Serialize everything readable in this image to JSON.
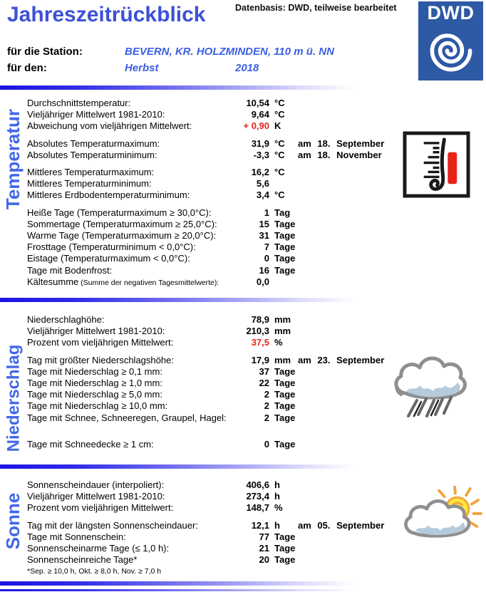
{
  "header": {
    "title": "Jahreszeitrückblick",
    "data_basis": "Datenbasis: DWD, teilweise bearbeitet",
    "logo_text": "DWD"
  },
  "station": {
    "station_label": "für die Station:",
    "station_value": "BEVERN, KR. HOLZMINDEN, 110 m ü. NN",
    "period_label": "für den:",
    "season": "Herbst",
    "year": "2018"
  },
  "colors": {
    "title_blue": "#3d50d6",
    "section_label_blue": "#4167e8",
    "station_blue": "#3b5fe0",
    "value_red": "#e8231a",
    "logo_blue": "#2d59a5"
  },
  "sections": [
    {
      "id": "temperatur",
      "label": "Temperatur",
      "icon": "thermometer-icon",
      "groups": [
        {
          "rows": [
            {
              "label": "Durchschnittstemperatur:",
              "value": "10,54",
              "unit": "°C"
            },
            {
              "label": "Vieljähriger Mittelwert 1981-2010:",
              "value": "9,64",
              "unit": "°C"
            },
            {
              "label": "Abweichung vom vieljährigen Mittelwert:",
              "value": "+ 0,90",
              "unit": "K",
              "red": true
            }
          ]
        },
        {
          "rows": [
            {
              "label": "Absolutes Temperaturmaximum:",
              "value": "31,9",
              "unit": "°C",
              "extra": "am 18. September"
            },
            {
              "label": "Absolutes Temperaturminimum:",
              "value": "-3,3",
              "unit": "°C",
              "extra": "am 18. November"
            }
          ]
        },
        {
          "rows": [
            {
              "label": "Mittleres Temperaturmaximum:",
              "value": "16,2",
              "unit": "°C"
            },
            {
              "label": "Mittleres Temperaturminimum:",
              "value": "5,6",
              "unit": ""
            },
            {
              "label": "Mittleres Erdbodentemperaturminimum:",
              "value": "3,4",
              "unit": "°C"
            }
          ]
        },
        {
          "rows": [
            {
              "label": "Heiße Tage (Temperaturmaximum ≥ 30,0°C):",
              "value": "1",
              "unit": "Tag"
            },
            {
              "label": "Sommertage (Temperaturmaximum ≥ 25,0°C):",
              "value": "15",
              "unit": "Tage"
            },
            {
              "label": "Warme Tage (Temperaturmaximum ≥ 20,0°C):",
              "value": "31",
              "unit": "Tage"
            },
            {
              "label": "Frosttage (Temperaturminimum < 0,0°C):",
              "value": "7",
              "unit": "Tage"
            },
            {
              "label": "Eistage (Temperaturmaximum < 0,0°C):",
              "value": "0",
              "unit": "Tage"
            },
            {
              "label": "Tage mit Bodenfrost:",
              "value": "16",
              "unit": "Tage"
            },
            {
              "label": "Kältesumme",
              "label_small": "(Summe der negativen Tagesmittelwerte):",
              "value": "0,0",
              "unit": ""
            }
          ]
        }
      ]
    },
    {
      "id": "niederschlag",
      "label": "Niederschlag",
      "icon": "rain-cloud-icon",
      "groups": [
        {
          "rows": [
            {
              "label": "Niederschlaghöhe:",
              "value": "78,9",
              "unit": "mm"
            },
            {
              "label": "Vieljähriger Mittelwert 1981-2010:",
              "value": "210,3",
              "unit": "mm"
            },
            {
              "label": "Prozent vom vieljährigen Mittelwert:",
              "value": "37,5",
              "unit": "%",
              "red": true
            }
          ]
        },
        {
          "rows": [
            {
              "label": "Tag mit größter Niederschlagshöhe:",
              "value": "17,9",
              "unit": "mm",
              "extra": "am 23. September"
            },
            {
              "label": "Tage mit Niederschlag ≥ 0,1 mm:",
              "value": "37",
              "unit": "Tage"
            },
            {
              "label": "Tage mit Niederschlag ≥ 1,0 mm:",
              "value": "22",
              "unit": "Tage"
            },
            {
              "label": "Tage mit Niederschlag ≥ 5,0 mm:",
              "value": "2",
              "unit": "Tage"
            },
            {
              "label": "Tage mit Niederschlag ≥ 10,0 mm:",
              "value": "2",
              "unit": "Tage"
            },
            {
              "label": "Tage mit Schnee, Schneeregen, Graupel, Hagel:",
              "value": "2",
              "unit": "Tage"
            }
          ]
        },
        {
          "gap": 21,
          "rows": [
            {
              "label": "Tage mit Schneedecke ≥ 1 cm:",
              "value": "0",
              "unit": "Tage"
            }
          ]
        }
      ]
    },
    {
      "id": "sonne",
      "label": "Sonne",
      "icon": "sun-cloud-icon",
      "footnote": "*Sep. ≥ 10,0 h, Okt. ≥ 8,0 h, Nov. ≥ 7,0 h",
      "groups": [
        {
          "rows": [
            {
              "label": "Sonnenscheindauer (interpoliert):",
              "value": "406,6",
              "unit": "h"
            },
            {
              "label": "Vieljähriger Mittelwert 1981-2010:",
              "value": "273,4",
              "unit": "h"
            },
            {
              "label": "Prozent vom vieljährigen Mittelwert:",
              "value": "148,7",
              "unit": "%"
            }
          ]
        },
        {
          "rows": [
            {
              "label": "Tag mit der längsten Sonnenscheindauer:",
              "value": "12,1",
              "unit": "h",
              "extra": "am 05. September"
            },
            {
              "label": "Tage mit Sonnenschein:",
              "value": "77",
              "unit": "Tage"
            },
            {
              "label": "Sonnenscheinarme Tage (≤ 1,0 h):",
              "value": "21",
              "unit": "Tage"
            },
            {
              "label": "Sonnenscheinreiche Tage*",
              "value": "20",
              "unit": "Tage"
            }
          ]
        }
      ]
    }
  ]
}
